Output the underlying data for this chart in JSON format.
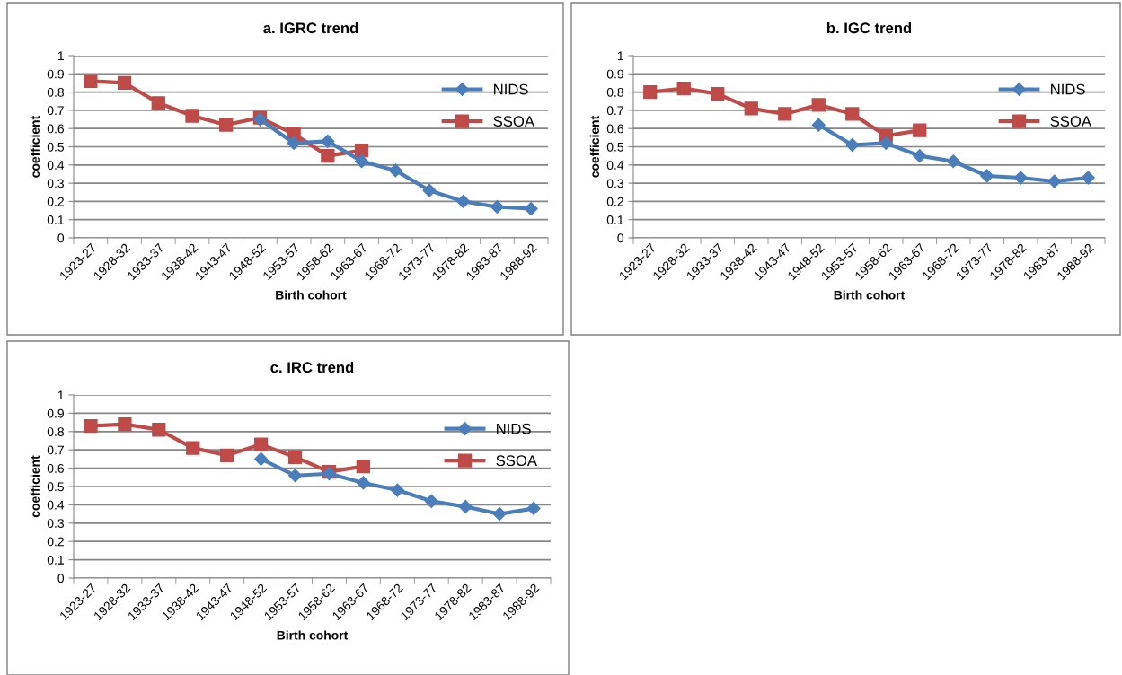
{
  "chart_data": [
    {
      "type": "line",
      "title": "a. IGRC trend",
      "xlabel": "Birth cohort",
      "ylabel": "coefficient",
      "categories": [
        "1923-27",
        "1928-32",
        "1933-37",
        "1938-42",
        "1943-47",
        "1948-52",
        "1953-57",
        "1958-62",
        "1963-67",
        "1968-72",
        "1973-77",
        "1978-82",
        "1983-87",
        "1988-92"
      ],
      "ylim": [
        0,
        1
      ],
      "yticks": [
        0,
        0.1,
        0.2,
        0.3,
        0.4,
        0.5,
        0.6,
        0.7,
        0.8,
        0.9,
        1
      ],
      "grid": "y",
      "legend": "top right",
      "series": [
        {
          "name": "NIDS",
          "color": "#4a7ebb",
          "marker": "diamond",
          "values": [
            null,
            null,
            null,
            null,
            null,
            0.65,
            0.52,
            0.53,
            0.42,
            0.37,
            0.26,
            0.2,
            0.17,
            0.16
          ]
        },
        {
          "name": "SSOA",
          "color": "#be4b48",
          "marker": "square",
          "values": [
            0.86,
            0.85,
            0.74,
            0.67,
            0.62,
            0.66,
            0.57,
            0.45,
            0.48,
            null,
            null,
            null,
            null,
            null
          ]
        }
      ]
    },
    {
      "type": "line",
      "title": "b. IGC trend",
      "xlabel": "Birth cohort",
      "ylabel": "coefficient",
      "categories": [
        "1923-27",
        "1928-32",
        "1933-37",
        "1938-42",
        "1943-47",
        "1948-52",
        "1953-57",
        "1958-62",
        "1963-67",
        "1968-72",
        "1973-77",
        "1978-82",
        "1983-87",
        "1988-92"
      ],
      "ylim": [
        0,
        1
      ],
      "yticks": [
        0,
        0.1,
        0.2,
        0.3,
        0.4,
        0.5,
        0.6,
        0.7,
        0.8,
        0.9,
        1
      ],
      "grid": "y",
      "legend": "top right",
      "series": [
        {
          "name": "NIDS",
          "color": "#4a7ebb",
          "marker": "diamond",
          "values": [
            null,
            null,
            null,
            null,
            null,
            0.62,
            0.51,
            0.52,
            0.45,
            0.42,
            0.34,
            0.33,
            0.31,
            0.33
          ]
        },
        {
          "name": "SSOA",
          "color": "#be4b48",
          "marker": "square",
          "values": [
            0.8,
            0.82,
            0.79,
            0.71,
            0.68,
            0.73,
            0.68,
            0.56,
            0.59,
            null,
            null,
            null,
            null,
            null
          ]
        }
      ]
    },
    {
      "type": "line",
      "title": "c. IRC trend",
      "xlabel": "Birth cohort",
      "ylabel": "coefficient",
      "categories": [
        "1923-27",
        "1928-32",
        "1933-37",
        "1938-42",
        "1943-47",
        "1948-52",
        "1953-57",
        "1958-62",
        "1963-67",
        "1968-72",
        "1973-77",
        "1978-82",
        "1983-87",
        "1988-92"
      ],
      "ylim": [
        0,
        1
      ],
      "yticks": [
        0,
        0.1,
        0.2,
        0.3,
        0.4,
        0.5,
        0.6,
        0.7,
        0.8,
        0.9,
        1
      ],
      "grid": "y",
      "legend": "top right",
      "series": [
        {
          "name": "NIDS",
          "color": "#4a7ebb",
          "marker": "diamond",
          "values": [
            null,
            null,
            null,
            null,
            null,
            0.65,
            0.56,
            0.57,
            0.52,
            0.48,
            0.42,
            0.39,
            0.35,
            0.38
          ]
        },
        {
          "name": "SSOA",
          "color": "#be4b48",
          "marker": "square",
          "values": [
            0.83,
            0.84,
            0.81,
            0.71,
            0.67,
            0.73,
            0.66,
            0.58,
            0.61,
            null,
            null,
            null,
            null,
            null
          ]
        }
      ]
    }
  ]
}
